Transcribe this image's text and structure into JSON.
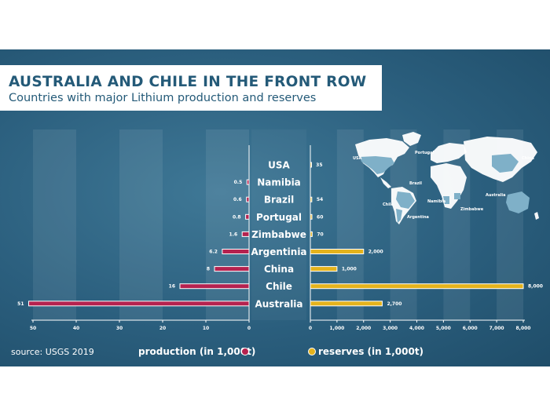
{
  "title": "AUSTRALIA AND CHILE IN THE FRONT ROW",
  "subtitle": "Countries with major Lithium production and reserves",
  "source": "source: USGS 2019",
  "legend": {
    "production": "production (in 1,000t)",
    "reserves": "reserves (in 1,000t)"
  },
  "colors": {
    "production": "#b5224f",
    "reserves": "#e5b31c",
    "panel": "#2b5f7e",
    "map_land": "#ffffff",
    "map_highlight": "#7fb0c8"
  },
  "map_labels": [
    "USA",
    "Portugal",
    "China",
    "Brazil",
    "Chile",
    "Namibia",
    "Australia",
    "Zimbabwe",
    "Argentina"
  ],
  "chart_data": {
    "type": "bar",
    "title": "AUSTRALIA AND CHILE IN THE FRONT ROW",
    "subtitle": "Countries with major Lithium production and reserves",
    "categories": [
      "USA",
      "Namibia",
      "Brazil",
      "Portugal",
      "Zimbabwe",
      "Argentinia",
      "China",
      "Chile",
      "Australia"
    ],
    "series": [
      {
        "name": "production (in 1,000t)",
        "values": [
          null,
          0.5,
          0.6,
          0.8,
          1.6,
          6.2,
          8,
          16,
          51
        ],
        "labels": [
          "",
          "0.5",
          "0.6",
          "0.8",
          "1.6",
          "6.2",
          "8",
          "16",
          "51"
        ],
        "xlim": [
          0,
          50
        ],
        "ticks": [
          "50",
          "40",
          "30",
          "20",
          "10",
          "0"
        ],
        "tick_values": [
          50,
          40,
          30,
          20,
          10,
          0
        ]
      },
      {
        "name": "reserves (in 1,000t)",
        "values": [
          35,
          null,
          54,
          60,
          70,
          2000,
          1000,
          8000,
          2700
        ],
        "labels": [
          "35",
          "",
          "54",
          "60",
          "70",
          "2,000",
          "1,000",
          "8,000",
          "2,700"
        ],
        "xlim": [
          0,
          8000
        ],
        "ticks": [
          "0",
          "1,000",
          "2,000",
          "3,000",
          "4,000",
          "5,000",
          "6,000",
          "7,000",
          "8,000"
        ],
        "tick_values": [
          0,
          1000,
          2000,
          3000,
          4000,
          5000,
          6000,
          7000,
          8000
        ]
      }
    ]
  }
}
